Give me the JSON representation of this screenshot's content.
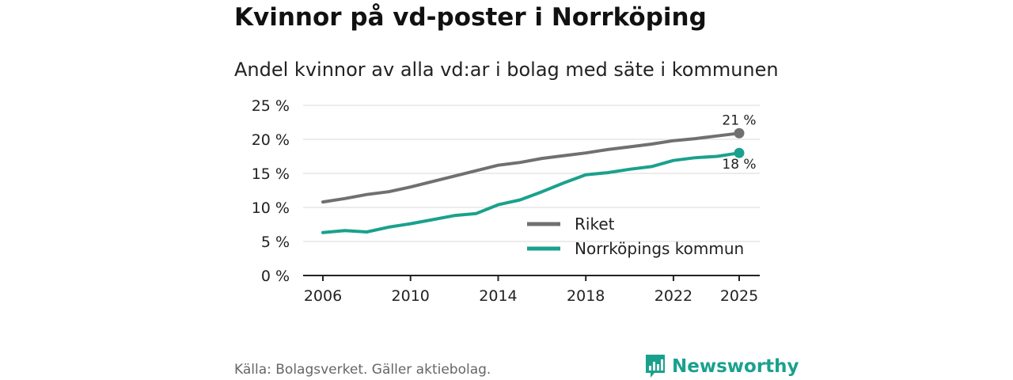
{
  "title": "Kvinnor på vd-poster i Norrköping",
  "subtitle": "Andel kvinnor av alla vd:ar i bolag med säte i kommunen",
  "source": "Källa: Bolagsverket. Gäller aktiebolag.",
  "brand": "Newsworthy",
  "colors": {
    "riket": "#707070",
    "norrkoping": "#1aa18d",
    "grid": "#d9d9d9",
    "axis": "#222222"
  },
  "chart_data": {
    "type": "line",
    "x": [
      2006,
      2007,
      2008,
      2009,
      2010,
      2011,
      2012,
      2013,
      2014,
      2015,
      2016,
      2017,
      2018,
      2019,
      2020,
      2021,
      2022,
      2023,
      2024,
      2025
    ],
    "series": [
      {
        "name": "Riket",
        "values": [
          10.8,
          11.3,
          11.9,
          12.3,
          13.0,
          13.8,
          14.6,
          15.4,
          16.2,
          16.6,
          17.2,
          17.6,
          18.0,
          18.5,
          18.9,
          19.3,
          19.8,
          20.1,
          20.5,
          20.9
        ],
        "end_label": "21 %"
      },
      {
        "name": "Norrköpings kommun",
        "values": [
          6.3,
          6.6,
          6.4,
          7.1,
          7.6,
          8.2,
          8.8,
          9.1,
          10.4,
          11.1,
          12.3,
          13.6,
          14.8,
          15.1,
          15.6,
          16.0,
          16.9,
          17.3,
          17.5,
          18.0
        ],
        "end_label": "18 %"
      }
    ],
    "y_ticks": [
      0,
      5,
      10,
      15,
      20,
      25
    ],
    "y_tick_labels": [
      "0 %",
      "5 %",
      "10 %",
      "15 %",
      "20 %",
      "25 %"
    ],
    "x_ticks": [
      2006,
      2010,
      2014,
      2018,
      2022,
      2025
    ],
    "x_tick_labels": [
      "2006",
      "2010",
      "2014",
      "2018",
      "2022",
      "2025"
    ],
    "ylim": [
      0,
      25
    ],
    "xlim": [
      2006,
      2025
    ],
    "xlabel": "",
    "ylabel": "",
    "grid": true,
    "legend": "bottom-right"
  }
}
